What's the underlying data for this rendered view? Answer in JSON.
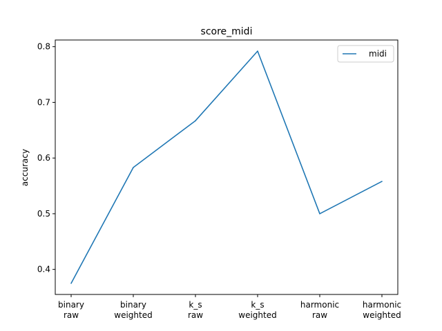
{
  "chart_data": {
    "type": "line",
    "title": "score_midi",
    "xlabel": "",
    "ylabel": "accuracy",
    "categories": [
      [
        "binary",
        "raw"
      ],
      [
        "binary",
        "weighted"
      ],
      [
        "k_s",
        "raw"
      ],
      [
        "k_s",
        "weighted"
      ],
      [
        "harmonic",
        "raw"
      ],
      [
        "harmonic",
        "weighted"
      ]
    ],
    "series": [
      {
        "name": "midi",
        "color": "#1f77b4",
        "values": [
          0.375,
          0.583,
          0.667,
          0.792,
          0.5,
          0.558
        ]
      }
    ],
    "yticks": [
      "0.4",
      "0.5",
      "0.6",
      "0.7",
      "0.8"
    ],
    "ylim": [
      0.355,
      0.812
    ],
    "grid": false,
    "legend": "top-right"
  }
}
